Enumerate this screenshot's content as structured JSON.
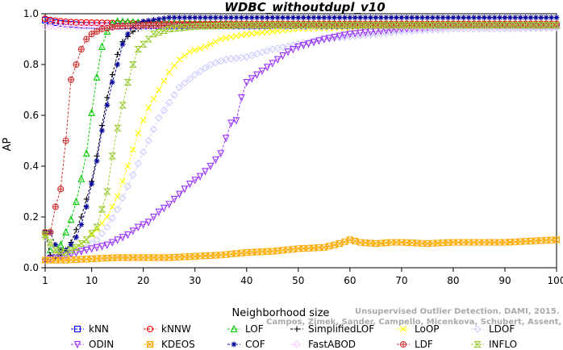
{
  "chart_data": {
    "type": "line",
    "title": "WDBC_withoutdupl_v10",
    "xlabel": "Neighborhood size",
    "ylabel": "AP",
    "xlim": [
      1,
      100
    ],
    "ylim": [
      0,
      1
    ],
    "xticks": [
      1,
      10,
      20,
      30,
      40,
      50,
      60,
      70,
      80,
      90,
      100
    ],
    "yticks": [
      0.0,
      0.2,
      0.4,
      0.6,
      0.8,
      1.0
    ],
    "grid": false,
    "legend_placement": "bottom",
    "watermark": [
      "Unsupervised Outlier Detection. DAMI, 2015.",
      "Campos, Zimek, Sander, Campello, Micenkova, Schubert, Assent, Houle"
    ],
    "series": [
      {
        "name": "kNN",
        "color": "#0000ff",
        "marker": "square",
        "points": [
          [
            1,
            0.975
          ],
          [
            2,
            0.97
          ],
          [
            3,
            0.965
          ],
          [
            4,
            0.962
          ],
          [
            5,
            0.96
          ],
          [
            6,
            0.958
          ],
          [
            7,
            0.957
          ],
          [
            8,
            0.955
          ],
          [
            10,
            0.954
          ],
          [
            15,
            0.952
          ],
          [
            20,
            0.952
          ],
          [
            30,
            0.952
          ],
          [
            40,
            0.952
          ],
          [
            50,
            0.952
          ],
          [
            60,
            0.952
          ],
          [
            70,
            0.952
          ],
          [
            80,
            0.952
          ],
          [
            90,
            0.952
          ],
          [
            100,
            0.952
          ]
        ]
      },
      {
        "name": "kNNW",
        "color": "#ff0000",
        "marker": "circle",
        "points": [
          [
            1,
            0.98
          ],
          [
            2,
            0.975
          ],
          [
            3,
            0.972
          ],
          [
            4,
            0.97
          ],
          [
            5,
            0.968
          ],
          [
            7,
            0.966
          ],
          [
            10,
            0.965
          ],
          [
            15,
            0.963
          ],
          [
            20,
            0.962
          ],
          [
            30,
            0.96
          ],
          [
            40,
            0.96
          ],
          [
            50,
            0.96
          ],
          [
            60,
            0.96
          ],
          [
            70,
            0.96
          ],
          [
            80,
            0.96
          ],
          [
            90,
            0.96
          ],
          [
            100,
            0.96
          ]
        ]
      },
      {
        "name": "LOF",
        "color": "#00cc00",
        "marker": "triangle",
        "points": [
          [
            1,
            0.14
          ],
          [
            2,
            0.07
          ],
          [
            3,
            0.06
          ],
          [
            4,
            0.09
          ],
          [
            5,
            0.14
          ],
          [
            6,
            0.19
          ],
          [
            7,
            0.26
          ],
          [
            8,
            0.35
          ],
          [
            9,
            0.45
          ],
          [
            10,
            0.61
          ],
          [
            11,
            0.75
          ],
          [
            12,
            0.87
          ],
          [
            13,
            0.93
          ],
          [
            14,
            0.96
          ],
          [
            15,
            0.97
          ],
          [
            20,
            0.965
          ],
          [
            30,
            0.96
          ],
          [
            40,
            0.955
          ],
          [
            50,
            0.955
          ],
          [
            60,
            0.955
          ],
          [
            70,
            0.955
          ],
          [
            80,
            0.955
          ],
          [
            90,
            0.955
          ],
          [
            100,
            0.955
          ]
        ]
      },
      {
        "name": "SimplifiedLOF",
        "color": "#000000",
        "marker": "plus",
        "points": [
          [
            1,
            0.14
          ],
          [
            2,
            0.05
          ],
          [
            3,
            0.04
          ],
          [
            4,
            0.05
          ],
          [
            5,
            0.07
          ],
          [
            6,
            0.1
          ],
          [
            7,
            0.15
          ],
          [
            8,
            0.2
          ],
          [
            9,
            0.27
          ],
          [
            10,
            0.34
          ],
          [
            11,
            0.44
          ],
          [
            12,
            0.56
          ],
          [
            13,
            0.67
          ],
          [
            14,
            0.76
          ],
          [
            15,
            0.84
          ],
          [
            16,
            0.89
          ],
          [
            18,
            0.93
          ],
          [
            20,
            0.95
          ],
          [
            30,
            0.955
          ],
          [
            40,
            0.955
          ],
          [
            50,
            0.955
          ],
          [
            60,
            0.955
          ],
          [
            70,
            0.955
          ],
          [
            80,
            0.955
          ],
          [
            90,
            0.955
          ],
          [
            100,
            0.955
          ]
        ]
      },
      {
        "name": "LoOP",
        "color": "#ffff00",
        "marker": "x",
        "points": [
          [
            1,
            0.12
          ],
          [
            3,
            0.06
          ],
          [
            5,
            0.06
          ],
          [
            7,
            0.08
          ],
          [
            9,
            0.11
          ],
          [
            11,
            0.15
          ],
          [
            13,
            0.2
          ],
          [
            15,
            0.28
          ],
          [
            17,
            0.4
          ],
          [
            19,
            0.53
          ],
          [
            21,
            0.63
          ],
          [
            23,
            0.7
          ],
          [
            25,
            0.77
          ],
          [
            27,
            0.82
          ],
          [
            29,
            0.85
          ],
          [
            32,
            0.87
          ],
          [
            35,
            0.9
          ],
          [
            40,
            0.92
          ],
          [
            45,
            0.93
          ],
          [
            50,
            0.94
          ],
          [
            60,
            0.945
          ],
          [
            70,
            0.95
          ],
          [
            80,
            0.95
          ],
          [
            90,
            0.95
          ],
          [
            100,
            0.95
          ]
        ]
      },
      {
        "name": "LDOF",
        "color": "#ccccff",
        "marker": "diamond",
        "points": [
          [
            1,
            0.12
          ],
          [
            3,
            0.06
          ],
          [
            5,
            0.05
          ],
          [
            7,
            0.06
          ],
          [
            9,
            0.08
          ],
          [
            11,
            0.11
          ],
          [
            13,
            0.16
          ],
          [
            15,
            0.23
          ],
          [
            17,
            0.32
          ],
          [
            19,
            0.41
          ],
          [
            21,
            0.5
          ],
          [
            23,
            0.59
          ],
          [
            25,
            0.65
          ],
          [
            27,
            0.71
          ],
          [
            30,
            0.76
          ],
          [
            33,
            0.8
          ],
          [
            36,
            0.82
          ],
          [
            40,
            0.83
          ],
          [
            45,
            0.86
          ],
          [
            50,
            0.88
          ],
          [
            55,
            0.9
          ],
          [
            60,
            0.91
          ],
          [
            70,
            0.93
          ],
          [
            80,
            0.94
          ],
          [
            90,
            0.94
          ],
          [
            100,
            0.945
          ]
        ]
      },
      {
        "name": "ODIN",
        "color": "#9933ff",
        "marker": "triangle-down",
        "points": [
          [
            1,
            0.03
          ],
          [
            3,
            0.04
          ],
          [
            5,
            0.05
          ],
          [
            7,
            0.06
          ],
          [
            9,
            0.07
          ],
          [
            11,
            0.08
          ],
          [
            13,
            0.09
          ],
          [
            15,
            0.11
          ],
          [
            17,
            0.13
          ],
          [
            19,
            0.16
          ],
          [
            21,
            0.18
          ],
          [
            23,
            0.22
          ],
          [
            25,
            0.25
          ],
          [
            27,
            0.29
          ],
          [
            29,
            0.33
          ],
          [
            31,
            0.36
          ],
          [
            33,
            0.4
          ],
          [
            35,
            0.45
          ],
          [
            37,
            0.57
          ],
          [
            38,
            0.58
          ],
          [
            39,
            0.67
          ],
          [
            40,
            0.73
          ],
          [
            42,
            0.76
          ],
          [
            44,
            0.79
          ],
          [
            46,
            0.82
          ],
          [
            48,
            0.85
          ],
          [
            50,
            0.87
          ],
          [
            55,
            0.9
          ],
          [
            60,
            0.92
          ],
          [
            70,
            0.94
          ],
          [
            80,
            0.95
          ],
          [
            90,
            0.95
          ],
          [
            100,
            0.95
          ]
        ]
      },
      {
        "name": "KDEOS",
        "color": "#ffaa00",
        "marker": "square-x",
        "points": [
          [
            1,
            0.03
          ],
          [
            5,
            0.03
          ],
          [
            10,
            0.035
          ],
          [
            15,
            0.04
          ],
          [
            20,
            0.04
          ],
          [
            25,
            0.04
          ],
          [
            30,
            0.045
          ],
          [
            35,
            0.05
          ],
          [
            40,
            0.06
          ],
          [
            45,
            0.065
          ],
          [
            50,
            0.075
          ],
          [
            55,
            0.08
          ],
          [
            58,
            0.095
          ],
          [
            60,
            0.11
          ],
          [
            62,
            0.1
          ],
          [
            65,
            0.095
          ],
          [
            68,
            0.1
          ],
          [
            70,
            0.1
          ],
          [
            75,
            0.095
          ],
          [
            80,
            0.1
          ],
          [
            85,
            0.1
          ],
          [
            90,
            0.1
          ],
          [
            95,
            0.105
          ],
          [
            100,
            0.11
          ]
        ]
      },
      {
        "name": "COF",
        "color": "#000099",
        "marker": "asterisk",
        "points": [
          [
            1,
            0.14
          ],
          [
            2,
            0.14
          ],
          [
            3,
            0.09
          ],
          [
            4,
            0.07
          ],
          [
            5,
            0.07
          ],
          [
            6,
            0.09
          ],
          [
            7,
            0.12
          ],
          [
            8,
            0.17
          ],
          [
            9,
            0.24
          ],
          [
            10,
            0.33
          ],
          [
            11,
            0.42
          ],
          [
            12,
            0.54
          ],
          [
            13,
            0.64
          ],
          [
            14,
            0.73
          ],
          [
            15,
            0.8
          ],
          [
            16,
            0.88
          ],
          [
            17,
            0.92
          ],
          [
            18,
            0.95
          ],
          [
            20,
            0.97
          ],
          [
            25,
            0.985
          ],
          [
            30,
            0.985
          ],
          [
            40,
            0.985
          ],
          [
            50,
            0.985
          ],
          [
            60,
            0.985
          ],
          [
            70,
            0.985
          ],
          [
            80,
            0.985
          ],
          [
            90,
            0.985
          ],
          [
            100,
            0.985
          ]
        ]
      },
      {
        "name": "FastABOD",
        "color": "#ffccff",
        "marker": "diamond",
        "points": [
          [
            1,
            0.95
          ],
          [
            5,
            0.95
          ],
          [
            10,
            0.95
          ],
          [
            20,
            0.95
          ],
          [
            30,
            0.95
          ],
          [
            40,
            0.95
          ],
          [
            50,
            0.95
          ],
          [
            60,
            0.95
          ],
          [
            70,
            0.95
          ],
          [
            80,
            0.95
          ],
          [
            90,
            0.95
          ],
          [
            100,
            0.95
          ]
        ]
      },
      {
        "name": "LDF",
        "color": "#cc3333",
        "marker": "circle-plus",
        "points": [
          [
            1,
            0.14
          ],
          [
            2,
            0.14
          ],
          [
            3,
            0.24
          ],
          [
            4,
            0.31
          ],
          [
            5,
            0.5
          ],
          [
            6,
            0.74
          ],
          [
            7,
            0.8
          ],
          [
            8,
            0.86
          ],
          [
            9,
            0.9
          ],
          [
            10,
            0.92
          ],
          [
            11,
            0.93
          ],
          [
            12,
            0.94
          ],
          [
            15,
            0.95
          ],
          [
            20,
            0.955
          ],
          [
            30,
            0.955
          ],
          [
            40,
            0.955
          ],
          [
            50,
            0.955
          ],
          [
            60,
            0.955
          ],
          [
            70,
            0.955
          ],
          [
            80,
            0.955
          ],
          [
            90,
            0.955
          ],
          [
            100,
            0.955
          ]
        ]
      },
      {
        "name": "INFLO",
        "color": "#99cc33",
        "marker": "hourglass",
        "points": [
          [
            1,
            0.13
          ],
          [
            3,
            0.07
          ],
          [
            5,
            0.06
          ],
          [
            7,
            0.08
          ],
          [
            9,
            0.11
          ],
          [
            11,
            0.16
          ],
          [
            12,
            0.23
          ],
          [
            13,
            0.3
          ],
          [
            14,
            0.44
          ],
          [
            15,
            0.55
          ],
          [
            16,
            0.64
          ],
          [
            17,
            0.73
          ],
          [
            18,
            0.8
          ],
          [
            19,
            0.86
          ],
          [
            20,
            0.88
          ],
          [
            22,
            0.92
          ],
          [
            25,
            0.94
          ],
          [
            30,
            0.95
          ],
          [
            40,
            0.955
          ],
          [
            50,
            0.955
          ],
          [
            60,
            0.955
          ],
          [
            70,
            0.955
          ],
          [
            80,
            0.955
          ],
          [
            90,
            0.955
          ],
          [
            100,
            0.955
          ]
        ]
      }
    ]
  }
}
